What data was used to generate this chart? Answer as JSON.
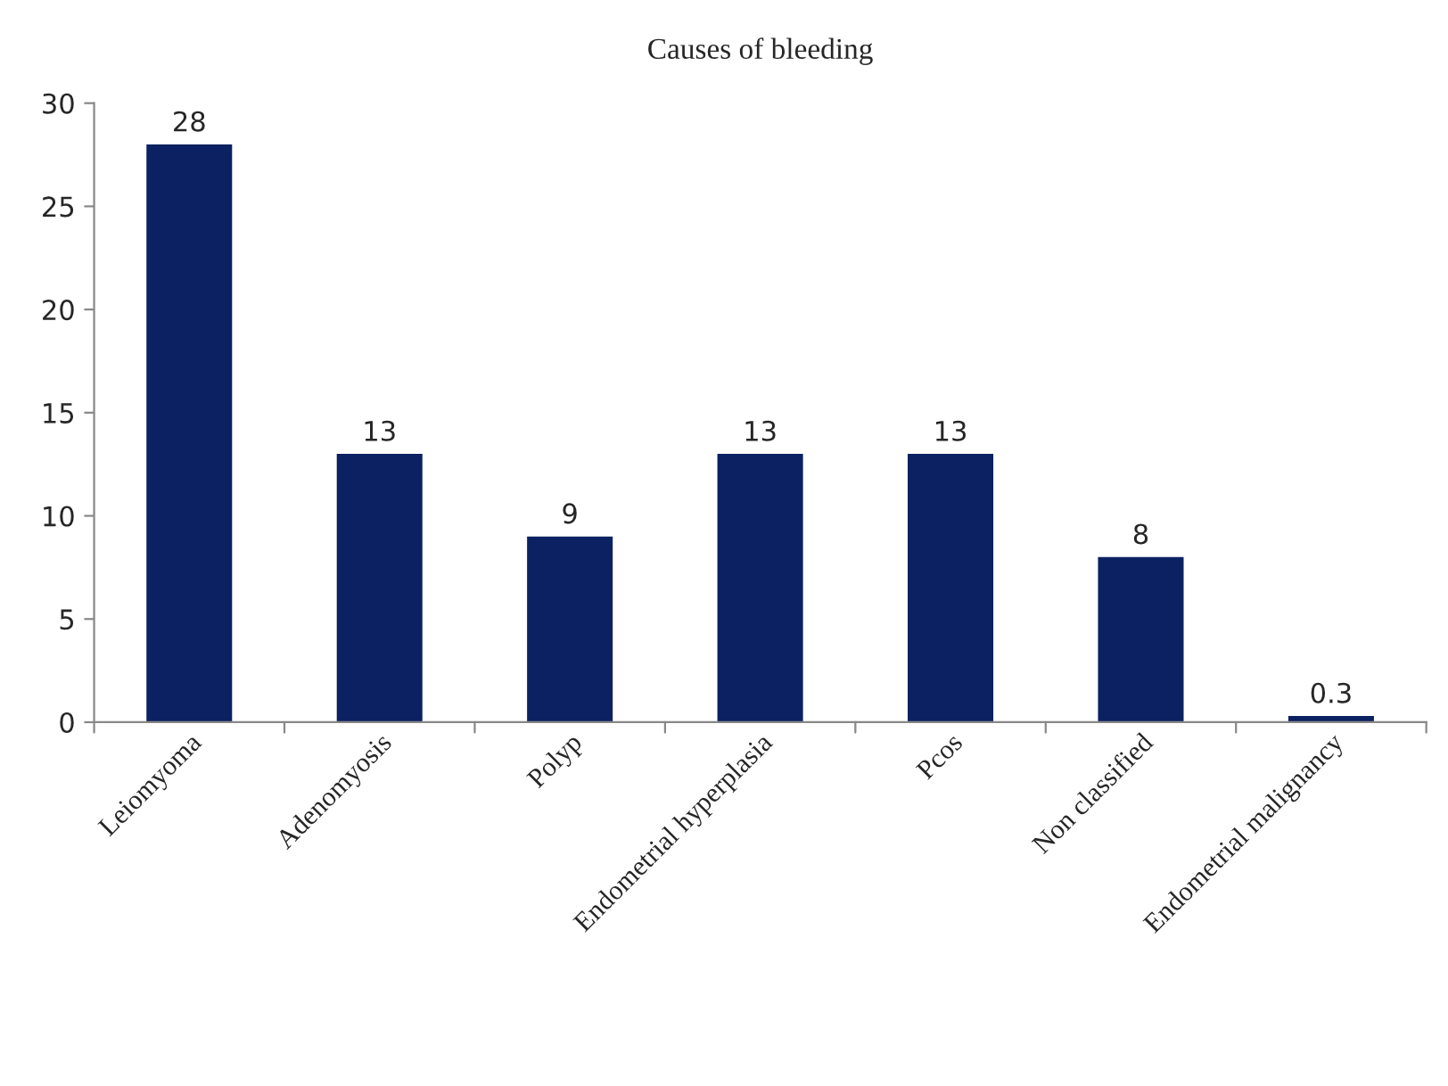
{
  "chart_data": {
    "type": "bar",
    "title": "Causes of bleeding",
    "categories": [
      "Leiomyoma",
      "Adenomyosis",
      "Polyp",
      "Endometrial hyperplasia",
      "Pcos",
      "Non classified",
      "Endometrial malignancy"
    ],
    "values": [
      28,
      13,
      9,
      13,
      13,
      8,
      0.3
    ],
    "color": "#0c2161",
    "ylim": [
      0,
      30
    ],
    "yticks": [
      0,
      5,
      10,
      15,
      20,
      25,
      30
    ],
    "data_labels": true,
    "grid": false,
    "legend": false
  }
}
